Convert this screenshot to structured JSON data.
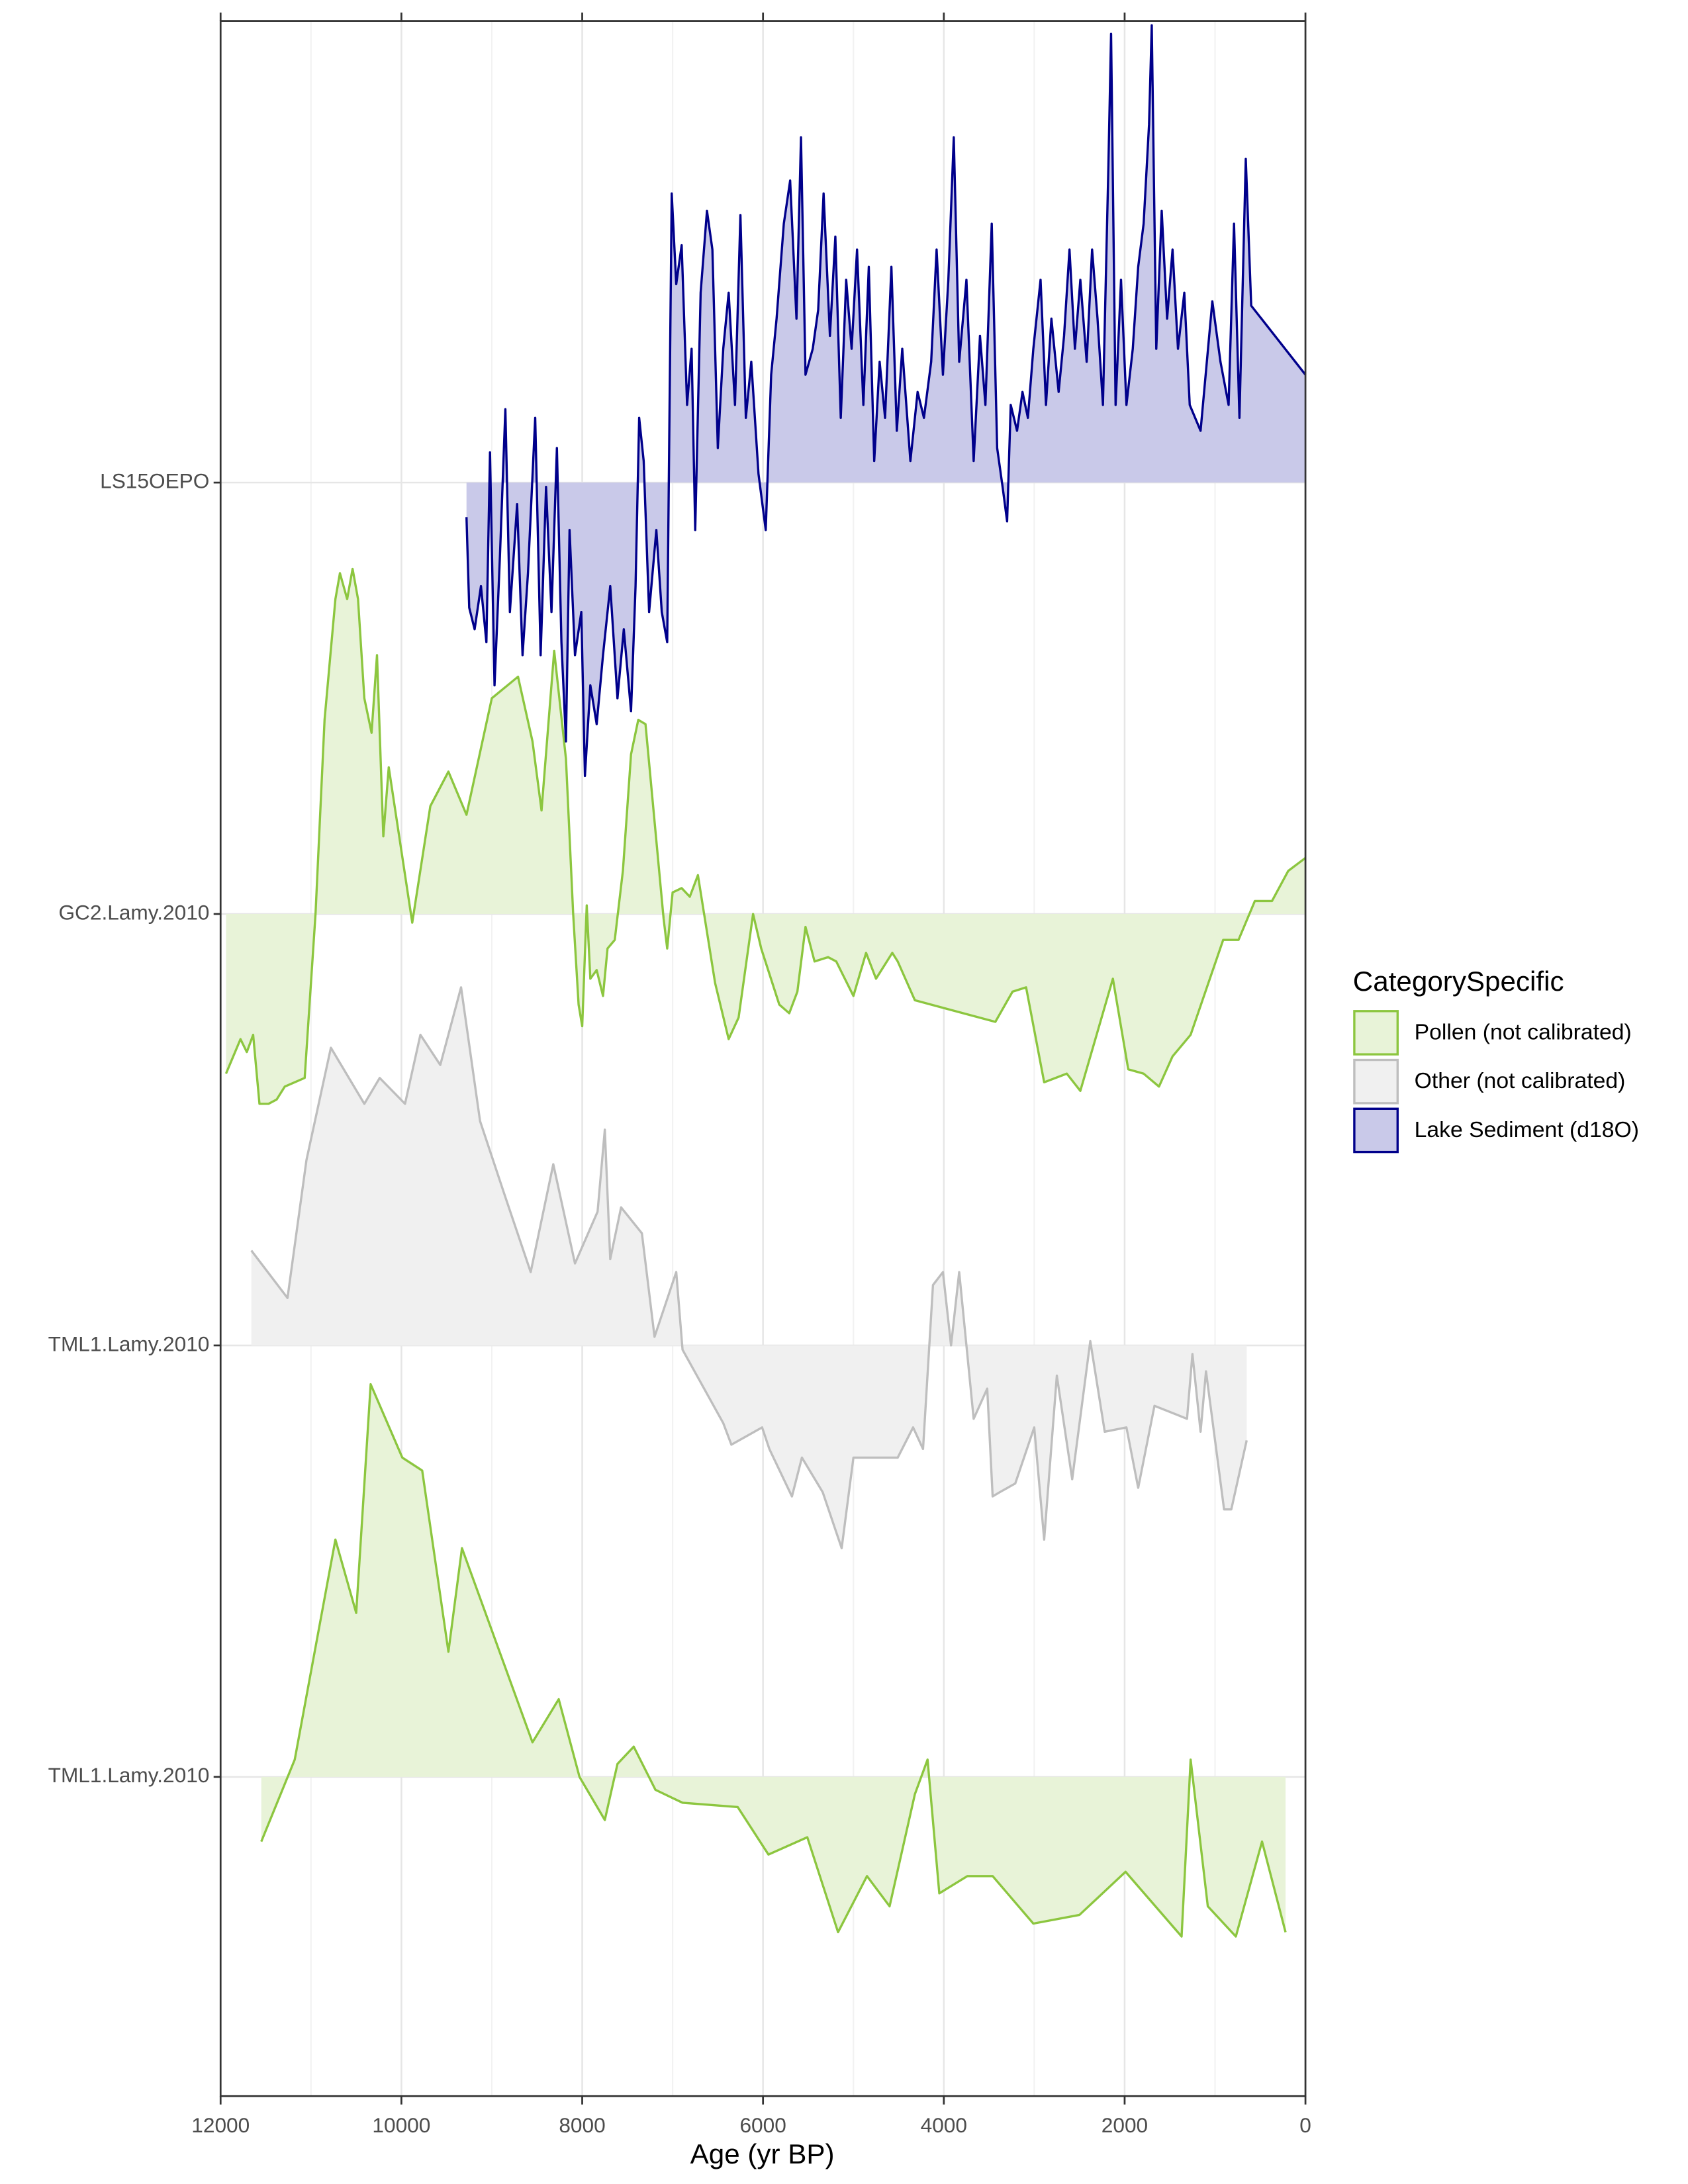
{
  "chart_data": {
    "type": "area",
    "xlabel": "Age (yr BP)",
    "xlim": [
      12000,
      0
    ],
    "xticks": [
      12000,
      10000,
      8000,
      6000,
      4000,
      2000,
      0
    ],
    "ylim": [
      -0.74,
      4.07
    ],
    "categories": [
      "TML1.Lamy.2010",
      "TML1.Lamy.2010",
      "GC2.Lamy.2010",
      "LS15OEPO"
    ],
    "legend_title": "CategorySpecific",
    "grid": true,
    "series": [
      {
        "name": "Pollen (not calibrated)",
        "color": "#8cc63f",
        "fill": "#e8f3d8",
        "x": [
          11550,
          11180,
          10730,
          10500,
          10340,
          9990,
          9770,
          9480,
          9330,
          8550,
          8260,
          8030,
          7750,
          7610,
          7430,
          7190,
          6890,
          6280,
          5940,
          5510,
          5170,
          4850,
          4600,
          4320,
          4180,
          4050,
          3740,
          3460,
          3010,
          2500,
          1990,
          1370,
          1270,
          1080,
          770,
          480,
          220
        ],
        "values": [
          -0.15,
          0.04,
          0.55,
          0.38,
          0.91,
          0.74,
          0.71,
          0.29,
          0.53,
          0.08,
          0.18,
          0,
          -0.1,
          0.03,
          0.07,
          -0.03,
          -0.06,
          -0.07,
          -0.18,
          -0.14,
          -0.36,
          -0.23,
          -0.3,
          -0.04,
          0.04,
          -0.27,
          -0.23,
          -0.23,
          -0.34,
          -0.32,
          -0.22,
          -0.37,
          0.04,
          -0.3,
          -0.37,
          -0.15,
          -0.36
        ]
      },
      {
        "name": "Other (not calibrated)",
        "color": "#bebebe",
        "fill": "#f0f0f0",
        "x": [
          11660,
          11260,
          11050,
          10780,
          10410,
          10240,
          9960,
          9790,
          9570,
          9340,
          9130,
          8860,
          8570,
          8320,
          8080,
          7830,
          7750,
          7690,
          7570,
          7340,
          7200,
          6960,
          6890,
          6440,
          6350,
          6010,
          5930,
          5680,
          5570,
          5340,
          5130,
          5000,
          4510,
          4340,
          4230,
          4120,
          4010,
          3920,
          3830,
          3670,
          3520,
          3460,
          3380,
          3210,
          3000,
          2890,
          2750,
          2580,
          2380,
          2220,
          1980,
          1850,
          1670,
          1310,
          1250,
          1160,
          1100,
          900,
          820,
          650
        ],
        "values": [
          0.22,
          0.11,
          0.43,
          0.69,
          0.56,
          0.62,
          0.56,
          0.72,
          0.65,
          0.83,
          0.52,
          0.35,
          0.17,
          0.42,
          0.19,
          0.31,
          0.5,
          0.2,
          0.32,
          0.26,
          0.02,
          0.17,
          -0.01,
          -0.18,
          -0.23,
          -0.19,
          -0.24,
          -0.35,
          -0.26,
          -0.34,
          -0.47,
          -0.26,
          -0.26,
          -0.19,
          -0.24,
          0.14,
          0.17,
          0,
          0.17,
          -0.17,
          -0.1,
          -0.35,
          -0.34,
          -0.32,
          -0.19,
          -0.45,
          -0.07,
          -0.31,
          0.01,
          -0.2,
          -0.19,
          -0.33,
          -0.14,
          -0.17,
          -0.02,
          -0.2,
          -0.06,
          -0.38,
          -0.38,
          -0.22
        ]
      },
      {
        "name": "Pollen (not calibrated)",
        "color": "#8cc63f",
        "fill": "#e8f3d8",
        "x": [
          11940,
          11880,
          11780,
          11710,
          11640,
          11570,
          11470,
          11380,
          11290,
          11070,
          10950,
          10850,
          10730,
          10680,
          10600,
          10540,
          10480,
          10410,
          10330,
          10270,
          10200,
          10140,
          9880,
          9680,
          9480,
          9280,
          9000,
          8710,
          8550,
          8450,
          8310,
          8180,
          8100,
          8040,
          8000,
          7950,
          7910,
          7840,
          7770,
          7720,
          7640,
          7550,
          7460,
          7380,
          7300,
          7100,
          7060,
          7000,
          6900,
          6810,
          6720,
          6530,
          6380,
          6270,
          6110,
          6020,
          5820,
          5710,
          5620,
          5530,
          5430,
          5280,
          5190,
          5000,
          4860,
          4750,
          4570,
          4510,
          4320,
          3430,
          3240,
          3090,
          2890,
          2640,
          2490,
          2130,
          1960,
          1790,
          1620,
          1470,
          1270,
          910,
          740,
          560,
          370,
          190,
          0
        ],
        "values": [
          -0.37,
          -0.34,
          -0.29,
          -0.32,
          -0.28,
          -0.44,
          -0.44,
          -0.43,
          -0.4,
          -0.38,
          0,
          0.45,
          0.73,
          0.79,
          0.73,
          0.8,
          0.73,
          0.5,
          0.42,
          0.6,
          0.18,
          0.34,
          -0.02,
          0.25,
          0.33,
          0.23,
          0.5,
          0.55,
          0.4,
          0.24,
          0.61,
          0.36,
          0,
          -0.21,
          -0.26,
          0.02,
          -0.15,
          -0.13,
          -0.19,
          -0.08,
          -0.06,
          0.1,
          0.37,
          0.45,
          0.44,
          -0.01,
          -0.08,
          0.05,
          0.06,
          0.04,
          0.09,
          -0.16,
          -0.29,
          -0.24,
          0,
          -0.08,
          -0.21,
          -0.23,
          -0.18,
          -0.03,
          -0.11,
          -0.1,
          -0.11,
          -0.19,
          -0.09,
          -0.15,
          -0.09,
          -0.11,
          -0.2,
          -0.25,
          -0.18,
          -0.17,
          -0.39,
          -0.37,
          -0.41,
          -0.15,
          -0.36,
          -0.37,
          -0.4,
          -0.33,
          -0.28,
          -0.06,
          -0.06,
          0.03,
          0.03,
          0.1,
          0.13
        ]
      },
      {
        "name": "Lake Sediment (d18O)",
        "color": "#00008b",
        "fill": "#c9c9e9",
        "x": [
          9280,
          9250,
          9190,
          9120,
          9060,
          9020,
          8970,
          8910,
          8850,
          8800,
          8720,
          8660,
          8600,
          8520,
          8460,
          8400,
          8340,
          8280,
          8230,
          8180,
          8140,
          8080,
          8010,
          7970,
          7910,
          7840,
          7770,
          7690,
          7610,
          7540,
          7460,
          7410,
          7370,
          7320,
          7260,
          7180,
          7120,
          7060,
          7010,
          6960,
          6900,
          6840,
          6790,
          6750,
          6690,
          6620,
          6560,
          6500,
          6440,
          6380,
          6310,
          6250,
          6190,
          6130,
          6050,
          5970,
          5910,
          5850,
          5770,
          5700,
          5630,
          5580,
          5530,
          5450,
          5390,
          5330,
          5260,
          5200,
          5140,
          5080,
          5020,
          4960,
          4890,
          4830,
          4770,
          4710,
          4650,
          4580,
          4520,
          4460,
          4370,
          4290,
          4220,
          4140,
          4080,
          4010,
          3950,
          3890,
          3830,
          3750,
          3670,
          3600,
          3540,
          3470,
          3410,
          3350,
          3300,
          3260,
          3190,
          3130,
          3070,
          3010,
          2930,
          2870,
          2810,
          2730,
          2670,
          2610,
          2550,
          2490,
          2420,
          2360,
          2300,
          2240,
          2180,
          2150,
          2100,
          2040,
          1980,
          1910,
          1850,
          1790,
          1730,
          1700,
          1650,
          1590,
          1530,
          1470,
          1410,
          1340,
          1280,
          1160,
          1030,
          940,
          850,
          790,
          730,
          660,
          600,
          0
        ],
        "values": [
          -0.08,
          -0.29,
          -0.34,
          -0.24,
          -0.37,
          0.07,
          -0.47,
          -0.17,
          0.17,
          -0.3,
          -0.05,
          -0.4,
          -0.21,
          0.15,
          -0.4,
          -0.01,
          -0.3,
          0.08,
          -0.37,
          -0.6,
          -0.11,
          -0.4,
          -0.3,
          -0.68,
          -0.47,
          -0.56,
          -0.4,
          -0.24,
          -0.5,
          -0.34,
          -0.53,
          -0.24,
          0.15,
          0.05,
          -0.3,
          -0.11,
          -0.3,
          -0.37,
          0.67,
          0.46,
          0.55,
          0.18,
          0.31,
          -0.11,
          0.44,
          0.63,
          0.54,
          0.08,
          0.31,
          0.44,
          0.18,
          0.62,
          0.15,
          0.28,
          0.02,
          -0.11,
          0.25,
          0.38,
          0.6,
          0.7,
          0.38,
          0.8,
          0.25,
          0.31,
          0.4,
          0.67,
          0.34,
          0.57,
          0.15,
          0.47,
          0.31,
          0.54,
          0.18,
          0.5,
          0.05,
          0.28,
          0.15,
          0.5,
          0.12,
          0.31,
          0.05,
          0.21,
          0.15,
          0.28,
          0.54,
          0.25,
          0.47,
          0.8,
          0.28,
          0.47,
          0.05,
          0.34,
          0.18,
          0.6,
          0.08,
          -0.01,
          -0.09,
          0.18,
          0.12,
          0.21,
          0.15,
          0.31,
          0.47,
          0.18,
          0.38,
          0.21,
          0.34,
          0.54,
          0.31,
          0.47,
          0.28,
          0.54,
          0.38,
          0.18,
          0.73,
          1.04,
          0.18,
          0.47,
          0.18,
          0.31,
          0.5,
          0.6,
          0.83,
          1.06,
          0.31,
          0.63,
          0.38,
          0.54,
          0.31,
          0.44,
          0.18,
          0.12,
          0.42,
          0.28,
          0.18,
          0.6,
          0.15,
          0.75,
          0.41,
          0.25
        ]
      }
    ]
  }
}
